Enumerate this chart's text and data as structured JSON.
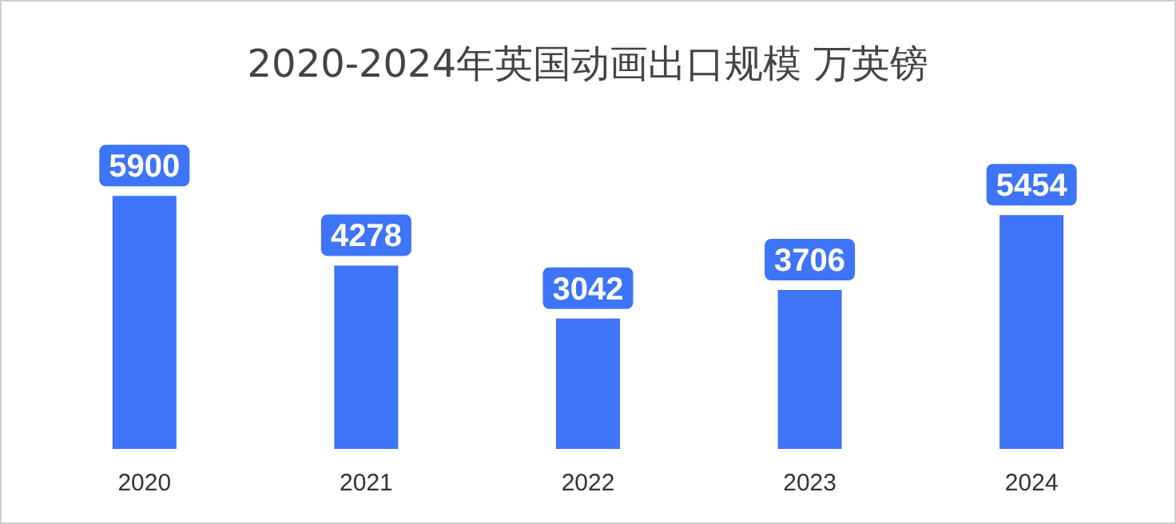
{
  "chart_data": {
    "type": "bar",
    "title": "2020-2024年英国动画出口规模 万英镑",
    "categories": [
      "2020",
      "2021",
      "2022",
      "2023",
      "2024"
    ],
    "values": [
      5900,
      4278,
      3042,
      3706,
      5454
    ],
    "color": "#3d74f8",
    "data_labels": true
  }
}
